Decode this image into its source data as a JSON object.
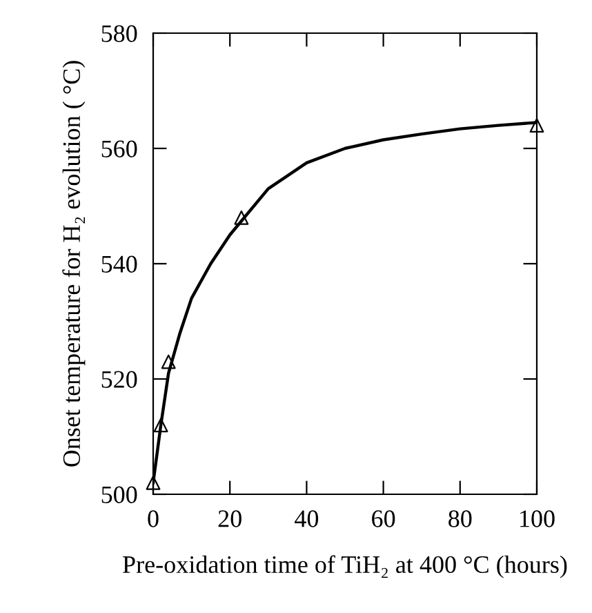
{
  "chart_data": {
    "type": "line",
    "xlabel": "Pre-oxidation time of TiH₂ at 400 °C (hours)",
    "ylabel": "Onset temperature for H₂ evolution ( °C)",
    "xlim": [
      0,
      100
    ],
    "xticks": [
      0,
      20,
      40,
      60,
      80,
      100
    ],
    "ylim": [
      500,
      580
    ],
    "yticks": [
      500,
      520,
      540,
      560,
      580
    ],
    "grid": false,
    "legend": false,
    "series": [
      {
        "color": "#000000",
        "marker": "none",
        "line_style": "solid",
        "x": [
          0,
          2,
          4,
          7,
          10,
          15,
          20,
          30,
          40,
          50,
          60,
          70,
          80,
          90,
          100
        ],
        "values": [
          502,
          512,
          521,
          528,
          534,
          540,
          545,
          553,
          557.5,
          560,
          561.5,
          562.5,
          563.4,
          564,
          564.5
        ]
      },
      {
        "type": "scatter",
        "color": "#000000",
        "marker": "triangle",
        "x": [
          0,
          2,
          4,
          23,
          100
        ],
        "values": [
          502,
          512,
          523,
          548,
          564
        ]
      }
    ]
  }
}
